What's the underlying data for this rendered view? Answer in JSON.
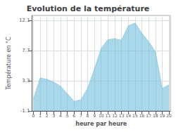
{
  "chart_data": {
    "type": "area",
    "title": "Evolution de la température",
    "xlabel": "heure par heure",
    "ylabel": "Température en °C",
    "x": [
      0,
      1,
      2,
      3,
      4,
      5,
      6,
      7,
      8,
      9,
      10,
      11,
      12,
      13,
      14,
      15,
      16,
      17,
      18,
      19,
      20
    ],
    "values": [
      0.6,
      3.7,
      3.5,
      3.1,
      2.5,
      1.4,
      0.3,
      0.5,
      2.2,
      5.0,
      8.0,
      9.3,
      9.4,
      9.2,
      11.3,
      11.7,
      10.2,
      9.0,
      7.5,
      2.2,
      2.7
    ],
    "color": "#60b8d8",
    "line_style": "dotted",
    "xlim": [
      -0.2,
      20.2
    ],
    "xticks": [
      0,
      1,
      2,
      3,
      4,
      5,
      6,
      7,
      8,
      9,
      10,
      11,
      12,
      13,
      14,
      15,
      16,
      17,
      18,
      19,
      20
    ],
    "ylim": [
      -1.1,
      12.8
    ],
    "yticks": [
      -1.1,
      3.3,
      7.7,
      12.1
    ],
    "grid": true
  }
}
